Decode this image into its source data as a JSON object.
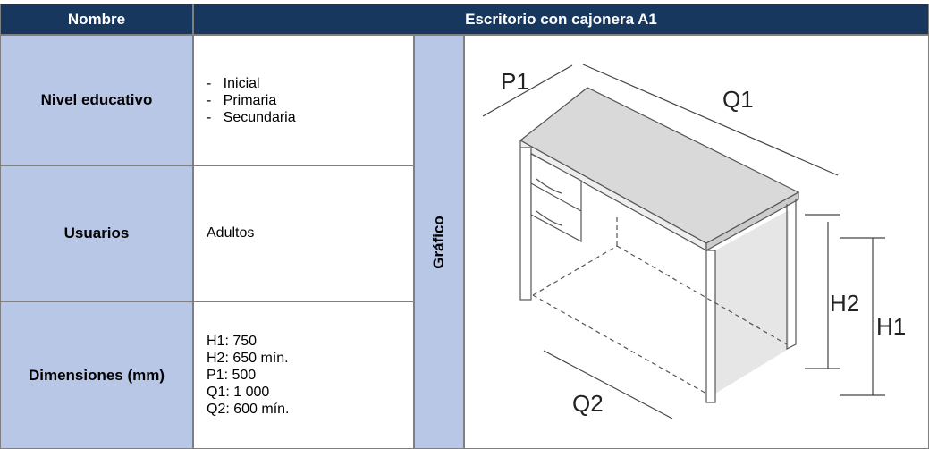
{
  "header": {
    "label": "Nombre",
    "title": "Escritorio con cajonera A1"
  },
  "rows": [
    {
      "label": "Nivel educativo",
      "items": [
        "Inicial",
        "Primaria",
        "Secundaria"
      ]
    },
    {
      "label": "Usuarios",
      "text": "Adultos"
    },
    {
      "label": "Dimensiones (mm)",
      "lines": [
        "H1: 750",
        "H2: 650 mín.",
        "P1: 500",
        "Q1: 1 000",
        "Q2: 600 mín."
      ]
    }
  ],
  "graphic": {
    "label": "Gráfico",
    "dimensions": [
      "P1",
      "Q1",
      "H2",
      "H1",
      "Q2"
    ]
  }
}
